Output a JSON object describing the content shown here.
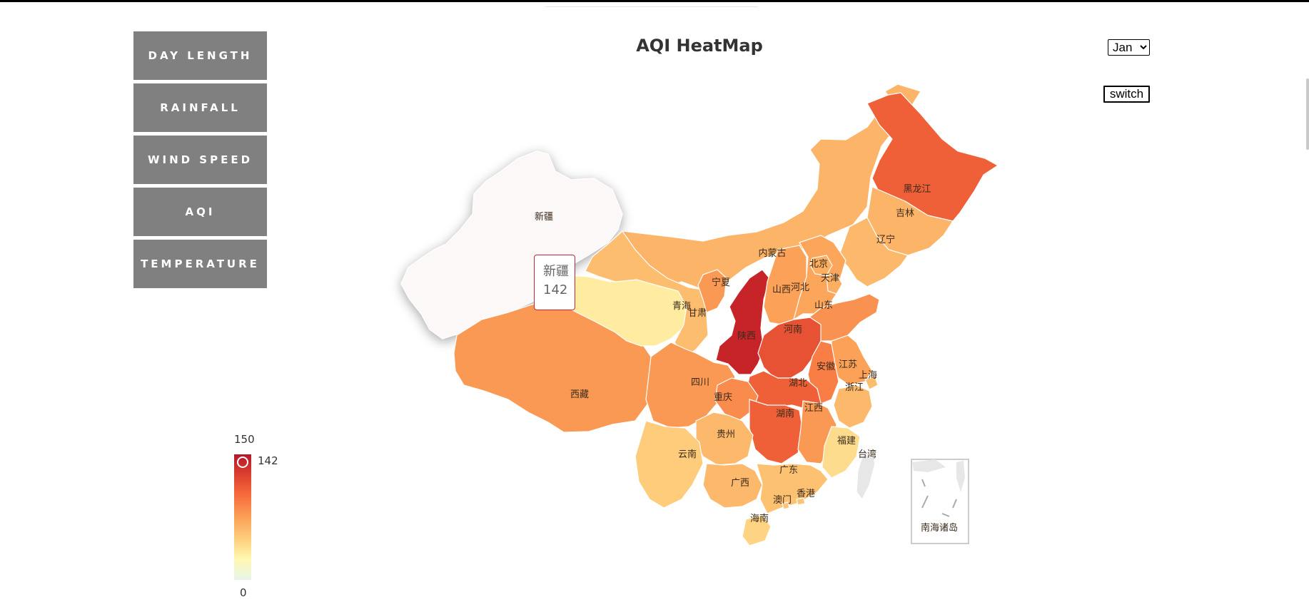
{
  "nav": {
    "items": [
      {
        "label": "DAY LENGTH"
      },
      {
        "label": "RAINFALL"
      },
      {
        "label": "WIND SPEED"
      },
      {
        "label": "AQI"
      },
      {
        "label": "TEMPERATURE"
      }
    ]
  },
  "header": {
    "title": "AQI HeatMap"
  },
  "controls": {
    "month": {
      "selected": "Jan"
    },
    "switch_label": "switch"
  },
  "tooltip": {
    "province": "新疆",
    "value": "142"
  },
  "visual_map": {
    "max": "150",
    "min": "0",
    "current": "142"
  },
  "colors": {
    "nav_bg": "#808080",
    "highlight": "#fcf8f8",
    "scale_high": "#b5172b",
    "scale_low": "#e8f4e9"
  },
  "chart_data": {
    "type": "heatmap",
    "title": "AQI HeatMap",
    "value_range": [
      0,
      150
    ],
    "regions": [
      {
        "name": "新疆",
        "value": 142
      },
      {
        "name": "西藏",
        "value": 95
      },
      {
        "name": "青海",
        "value": 45
      },
      {
        "name": "甘肃",
        "value": 75
      },
      {
        "name": "宁夏",
        "value": 95
      },
      {
        "name": "内蒙古",
        "value": 80
      },
      {
        "name": "黑龙江",
        "value": 118
      },
      {
        "name": "吉林",
        "value": 80
      },
      {
        "name": "辽宁",
        "value": 78
      },
      {
        "name": "北京",
        "value": 85
      },
      {
        "name": "天津",
        "value": 85
      },
      {
        "name": "河北",
        "value": 90
      },
      {
        "name": "山西",
        "value": 92
      },
      {
        "name": "山东",
        "value": 98
      },
      {
        "name": "陕西",
        "value": 145
      },
      {
        "name": "河南",
        "value": 125
      },
      {
        "name": "江苏",
        "value": 92
      },
      {
        "name": "安徽",
        "value": 105
      },
      {
        "name": "上海",
        "value": 75
      },
      {
        "name": "浙江",
        "value": 78
      },
      {
        "name": "湖北",
        "value": 118
      },
      {
        "name": "四川",
        "value": 95
      },
      {
        "name": "重庆",
        "value": 100
      },
      {
        "name": "湖南",
        "value": 118
      },
      {
        "name": "江西",
        "value": 95
      },
      {
        "name": "贵州",
        "value": 78
      },
      {
        "name": "云南",
        "value": 65
      },
      {
        "name": "福建",
        "value": 55
      },
      {
        "name": "广西",
        "value": 78
      },
      {
        "name": "广东",
        "value": 72
      },
      {
        "name": "澳门",
        "value": 70
      },
      {
        "name": "香港",
        "value": 70
      },
      {
        "name": "海南",
        "value": 60
      },
      {
        "name": "台湾",
        "value": null
      },
      {
        "name": "南海诸岛",
        "value": null
      }
    ]
  }
}
